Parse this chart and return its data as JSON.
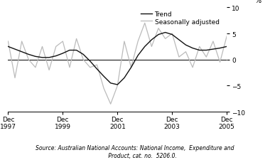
{
  "ylabel": "%",
  "ylim": [
    -10,
    10
  ],
  "yticks": [
    -10,
    -5,
    0,
    5,
    10
  ],
  "source_text": "Source: Australian National Accounts: National Income,  Expenditure and\n         Product, cat. no.  5206.0.",
  "legend_labels": [
    "Trend",
    "Seasonally adjusted"
  ],
  "trend_color": "#111111",
  "seasonal_color": "#bbbbbb",
  "background_color": "#ffffff",
  "xtick_labels": [
    "Dec\n1997",
    "Dec\n1999",
    "Dec\n2001",
    "Dec\n2003",
    "Dec\n2005"
  ],
  "xtick_positions": [
    0,
    8,
    16,
    24,
    32
  ],
  "trend_x": [
    0,
    1,
    2,
    3,
    4,
    5,
    6,
    7,
    8,
    9,
    10,
    11,
    12,
    13,
    14,
    15,
    16,
    17,
    18,
    19,
    20,
    21,
    22,
    23,
    24,
    25,
    26,
    27,
    28,
    29,
    30,
    31,
    32
  ],
  "trend_y": [
    2.5,
    2.0,
    1.5,
    1.0,
    0.6,
    0.4,
    0.4,
    0.7,
    1.2,
    1.8,
    1.8,
    1.0,
    -0.3,
    -1.8,
    -3.2,
    -4.5,
    -4.8,
    -3.5,
    -1.5,
    0.8,
    2.5,
    3.8,
    4.8,
    5.2,
    4.8,
    3.8,
    2.8,
    2.2,
    1.8,
    1.8,
    2.0,
    2.2,
    2.5
  ],
  "seasonal_x": [
    0,
    1,
    2,
    3,
    4,
    5,
    6,
    7,
    8,
    9,
    10,
    11,
    12,
    13,
    14,
    15,
    16,
    17,
    18,
    19,
    20,
    21,
    22,
    23,
    24,
    25,
    26,
    27,
    28,
    29,
    30,
    31,
    32
  ],
  "seasonal_y": [
    3.5,
    -3.5,
    3.5,
    0.0,
    -1.5,
    2.5,
    -2.0,
    2.5,
    3.5,
    -1.5,
    4.0,
    0.0,
    -1.5,
    -1.0,
    -5.5,
    -8.5,
    -5.0,
    3.5,
    -1.5,
    3.5,
    7.0,
    2.5,
    6.0,
    4.0,
    5.0,
    0.5,
    1.5,
    -1.5,
    2.5,
    0.5,
    3.5,
    -0.5,
    4.5
  ],
  "trend_lw": 1.0,
  "seasonal_lw": 0.9,
  "tick_fontsize": 6.5,
  "source_fontsize": 5.5
}
